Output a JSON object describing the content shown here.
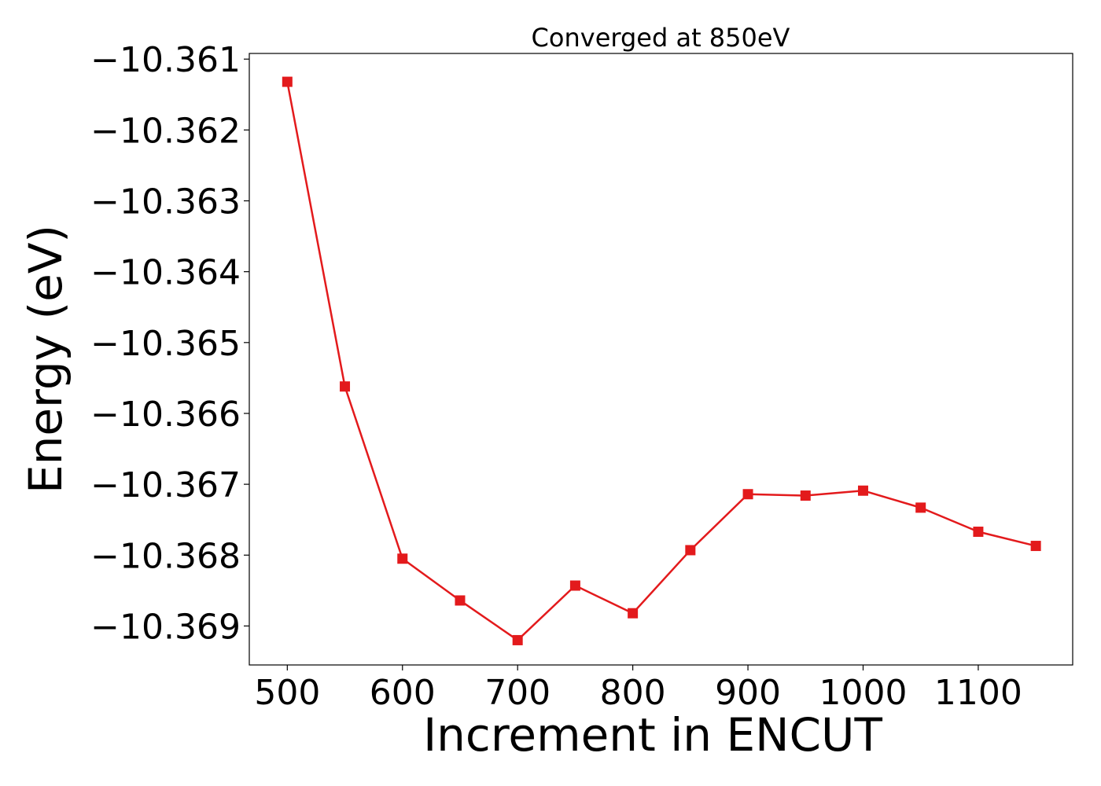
{
  "chart_data": {
    "type": "line",
    "title": "Converged at 850eV",
    "xlabel": "Increment in ENCUT",
    "ylabel": "Energy (eV)",
    "xlim": [
      467,
      1182
    ],
    "ylim": [
      -10.36955,
      -10.36092
    ],
    "xticks": [
      500,
      600,
      700,
      800,
      900,
      1000,
      1100
    ],
    "yticks": [
      -10.361,
      -10.362,
      -10.363,
      -10.364,
      -10.365,
      -10.366,
      -10.367,
      -10.368,
      -10.369
    ],
    "ytick_labels": [
      "−10.361",
      "−10.362",
      "−10.363",
      "−10.364",
      "−10.365",
      "−10.366",
      "−10.367",
      "−10.368",
      "−10.369"
    ],
    "grid": false,
    "series": [
      {
        "color": "#e31a1c",
        "marker": "square",
        "x": [
          500,
          550,
          600,
          650,
          700,
          750,
          800,
          850,
          900,
          950,
          1000,
          1050,
          1100,
          1150
        ],
        "y": [
          -10.36132,
          -10.36562,
          -10.36805,
          -10.36864,
          -10.3692,
          -10.36843,
          -10.36882,
          -10.36793,
          -10.36714,
          -10.36716,
          -10.36709,
          -10.36733,
          -10.36767,
          -10.36787
        ]
      }
    ]
  }
}
